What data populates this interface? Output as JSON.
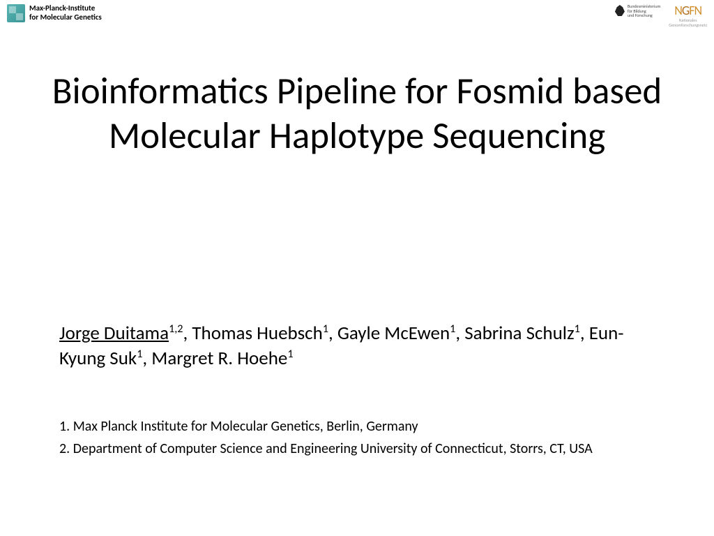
{
  "header": {
    "left_logo": {
      "institute_line1": "Max-Planck-Institute",
      "institute_line2": "for Molecular Genetics"
    },
    "right_logos": {
      "bmbf_line1": "Bundesministerium",
      "bmbf_line2": "für Bildung",
      "bmbf_line3": "und Forschung",
      "ngfn_text": "NGFN",
      "ngfn_sub1": "Nationales",
      "ngfn_sub2": "Genomforschungsnetz"
    }
  },
  "title": "Bioinformatics Pipeline for Fosmid based Molecular Haplotype Sequencing",
  "authors": {
    "a1_name": "Jorge Duitama",
    "a1_sup": "1,2",
    "a2_name": "Thomas Huebsch",
    "a2_sup": "1",
    "a3_name": "Gayle McEwen",
    "a3_sup": "1",
    "a4_name": "Sabrina Schulz",
    "a4_sup": "1",
    "a5_name": "Eun-Kyung Suk",
    "a5_sup": "1",
    "a6_name": "Margret R. Hoehe",
    "a6_sup": "1",
    "sep": ", "
  },
  "affiliations": {
    "aff1": "1. Max Planck Institute for Molecular Genetics, Berlin, Germany",
    "aff2": "2. Department of Computer Science and Engineering University of Connecticut, Storrs, CT, USA"
  },
  "colors": {
    "background": "#ffffff",
    "text": "#000000",
    "mpi_icon": "#5ab5b5",
    "ngfn": "#d09030"
  }
}
